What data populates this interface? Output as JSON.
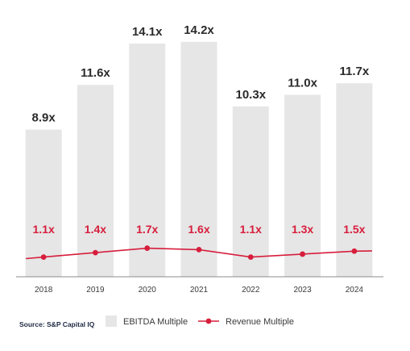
{
  "chart_data": {
    "type": "bar",
    "categories": [
      "2018",
      "2019",
      "2020",
      "2021",
      "2022",
      "2023",
      "2024"
    ],
    "series": [
      {
        "name": "EBITDA Multiple",
        "type": "bar",
        "values": [
          8.9,
          11.6,
          14.1,
          14.2,
          10.3,
          11.0,
          11.7
        ],
        "labels": [
          "8.9x",
          "11.6x",
          "14.1x",
          "14.2x",
          "10.3x",
          "11.0x",
          "11.7x"
        ],
        "color": "#e6e6e6"
      },
      {
        "name": "Revenue Multiple",
        "type": "line",
        "values": [
          1.1,
          1.4,
          1.7,
          1.6,
          1.1,
          1.3,
          1.5
        ],
        "labels": [
          "1.1x",
          "1.4x",
          "1.7x",
          "1.6x",
          "1.1x",
          "1.3x",
          "1.5x"
        ],
        "color": "#d71e3c"
      }
    ],
    "bar_label_color": "#2b2b2b",
    "line_label_color": "#d71e3c",
    "title": "",
    "xlabel": "",
    "ylabel": "",
    "grid": false,
    "legend_position": "bottom"
  },
  "source_note": "Source: S&P Capital IQ"
}
